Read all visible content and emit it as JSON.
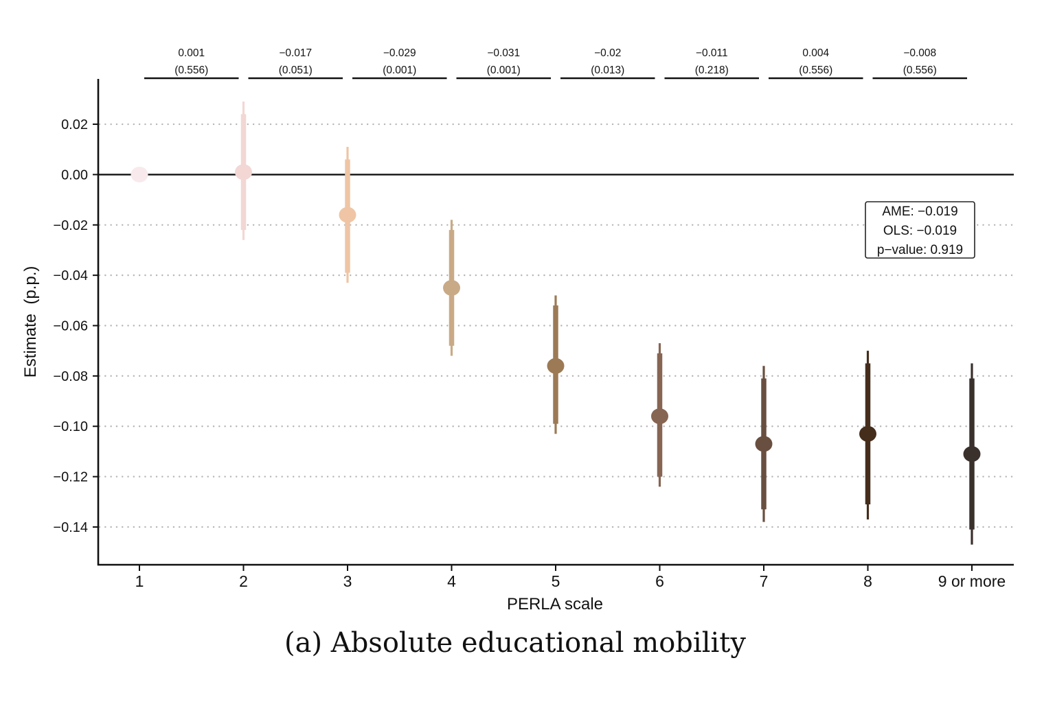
{
  "caption": "(a) Absolute educational mobility",
  "chart_data": {
    "type": "scatter",
    "subtype": "point-range",
    "xlabel": "PERLA scale",
    "ylabel": "Estimate  (p.p.)",
    "categories": [
      "1",
      "2",
      "3",
      "4",
      "5",
      "6",
      "7",
      "8",
      "9 or more"
    ],
    "ylim": [
      -0.155,
      0.038
    ],
    "yticks": [
      0.02,
      0.0,
      -0.02,
      -0.04,
      -0.06,
      -0.08,
      -0.1,
      -0.12,
      -0.14
    ],
    "ytick_labels": [
      "0.02",
      "0.00",
      "−0.02",
      "−0.04",
      "−0.06",
      "−0.08",
      "−0.10",
      "−0.12",
      "−0.14"
    ],
    "grid": "horizontal dotted",
    "reference_line": 0,
    "points": [
      {
        "x": "1",
        "estimate": 0.0,
        "ci_inner": null,
        "ci_outer": null,
        "color": "#f8eaec"
      },
      {
        "x": "2",
        "estimate": 0.001,
        "ci_inner": [
          -0.022,
          0.024
        ],
        "ci_outer": [
          -0.026,
          0.029
        ],
        "color": "#f2d7d4"
      },
      {
        "x": "3",
        "estimate": -0.016,
        "ci_inner": [
          -0.039,
          0.006
        ],
        "ci_outer": [
          -0.043,
          0.011
        ],
        "color": "#efc5a5"
      },
      {
        "x": "4",
        "estimate": -0.045,
        "ci_inner": [
          -0.068,
          -0.022
        ],
        "ci_outer": [
          -0.072,
          -0.018
        ],
        "color": "#c9aa87"
      },
      {
        "x": "5",
        "estimate": -0.076,
        "ci_inner": [
          -0.099,
          -0.052
        ],
        "ci_outer": [
          -0.103,
          -0.048
        ],
        "color": "#9c7a55"
      },
      {
        "x": "6",
        "estimate": -0.096,
        "ci_inner": [
          -0.12,
          -0.071
        ],
        "ci_outer": [
          -0.124,
          -0.067
        ],
        "color": "#876553"
      },
      {
        "x": "7",
        "estimate": -0.107,
        "ci_inner": [
          -0.133,
          -0.081
        ],
        "ci_outer": [
          -0.138,
          -0.076
        ],
        "color": "#694f40"
      },
      {
        "x": "8",
        "estimate": -0.103,
        "ci_inner": [
          -0.131,
          -0.075
        ],
        "ci_outer": [
          -0.137,
          -0.07
        ],
        "color": "#452d1c"
      },
      {
        "x": "9 or more",
        "estimate": -0.111,
        "ci_inner": [
          -0.141,
          -0.081
        ],
        "ci_outer": [
          -0.147,
          -0.075
        ],
        "color": "#3a302c"
      }
    ],
    "pairwise": [
      {
        "from": "1",
        "to": "2",
        "diff": "0.001",
        "p": "(0.556)"
      },
      {
        "from": "2",
        "to": "3",
        "diff": "−0.017",
        "p": "(0.051)"
      },
      {
        "from": "3",
        "to": "4",
        "diff": "−0.029",
        "p": "(0.001)"
      },
      {
        "from": "4",
        "to": "5",
        "diff": "−0.031",
        "p": "(0.001)"
      },
      {
        "from": "5",
        "to": "6",
        "diff": "−0.02",
        "p": "(0.013)"
      },
      {
        "from": "6",
        "to": "7",
        "diff": "−0.011",
        "p": "(0.218)"
      },
      {
        "from": "7",
        "to": "8",
        "diff": "0.004",
        "p": "(0.556)"
      },
      {
        "from": "8",
        "to": "9 or more",
        "diff": "−0.008",
        "p": "(0.556)"
      }
    ],
    "annotation_box": {
      "placement": "upper-right",
      "lines": [
        "AME: −0.019",
        "OLS: −0.019",
        "p−value: 0.919"
      ]
    }
  }
}
